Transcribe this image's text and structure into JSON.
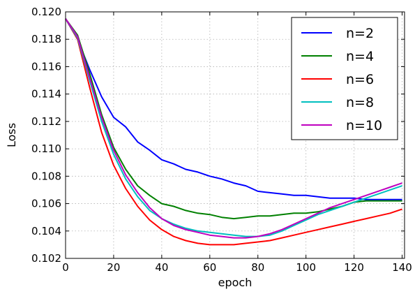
{
  "chart_data": {
    "type": "line",
    "title": "",
    "xlabel": "epoch",
    "ylabel": "Loss",
    "xlim": [
      0,
      141
    ],
    "ylim": [
      0.102,
      0.12
    ],
    "x_ticks": [
      0,
      20,
      40,
      60,
      80,
      100,
      120,
      140
    ],
    "y_ticks": [
      "0.102",
      "0.104",
      "0.106",
      "0.108",
      "0.110",
      "0.112",
      "0.114",
      "0.116",
      "0.118",
      "0.120"
    ],
    "grid": true,
    "legend_position": "top-right",
    "x": [
      0,
      5,
      10,
      15,
      20,
      25,
      30,
      35,
      40,
      45,
      50,
      55,
      60,
      65,
      70,
      75,
      80,
      85,
      90,
      95,
      100,
      105,
      110,
      115,
      120,
      125,
      130,
      135,
      140
    ],
    "series": [
      {
        "name": "n=2",
        "color": "#0000ff",
        "values": [
          0.1195,
          0.118,
          0.1158,
          0.1138,
          0.1123,
          0.1116,
          0.1105,
          0.1099,
          0.1092,
          0.1089,
          0.1085,
          0.1083,
          0.108,
          0.1078,
          0.1075,
          0.1073,
          0.1069,
          0.1068,
          0.1067,
          0.1066,
          0.1066,
          0.1065,
          0.1064,
          0.1064,
          0.1064,
          0.1063,
          0.1063,
          0.1063,
          0.1063
        ]
      },
      {
        "name": "n=4",
        "color": "#008000",
        "values": [
          0.1195,
          0.1183,
          0.1155,
          0.1125,
          0.1101,
          0.1085,
          0.1073,
          0.1066,
          0.106,
          0.1058,
          0.1055,
          0.1053,
          0.1052,
          0.105,
          0.1049,
          0.105,
          0.1051,
          0.1051,
          0.1052,
          0.1053,
          0.1053,
          0.1054,
          0.1056,
          0.1058,
          0.1061,
          0.1062,
          0.1062,
          0.1062,
          0.1062
        ]
      },
      {
        "name": "n=6",
        "color": "#ff0000",
        "values": [
          0.1195,
          0.118,
          0.1145,
          0.1112,
          0.1088,
          0.1071,
          0.1058,
          0.1048,
          0.1041,
          0.1036,
          0.1033,
          0.1031,
          0.103,
          0.103,
          0.103,
          0.1031,
          0.1032,
          0.1033,
          0.1035,
          0.1037,
          0.1039,
          0.1041,
          0.1043,
          0.1045,
          0.1047,
          0.1049,
          0.1051,
          0.1053,
          0.1056
        ]
      },
      {
        "name": "n=8",
        "color": "#00bfbf",
        "values": [
          0.1195,
          0.1181,
          0.115,
          0.112,
          0.1096,
          0.1078,
          0.1065,
          0.1055,
          0.1049,
          0.1045,
          0.1042,
          0.104,
          0.1039,
          0.1038,
          0.1037,
          0.1036,
          0.1036,
          0.1037,
          0.104,
          0.1044,
          0.1048,
          0.1052,
          0.1055,
          0.1058,
          0.1061,
          0.1064,
          0.1067,
          0.107,
          0.1073
        ]
      },
      {
        "name": "n=10",
        "color": "#bf00bf",
        "values": [
          0.1195,
          0.1182,
          0.1152,
          0.1123,
          0.1099,
          0.1081,
          0.1068,
          0.1057,
          0.1049,
          0.1044,
          0.1041,
          0.1039,
          0.1037,
          0.1036,
          0.1035,
          0.1035,
          0.1036,
          0.1038,
          0.1041,
          0.1045,
          0.1049,
          0.1053,
          0.1057,
          0.106,
          0.1063,
          0.1066,
          0.1069,
          0.1072,
          0.1075
        ]
      }
    ]
  }
}
